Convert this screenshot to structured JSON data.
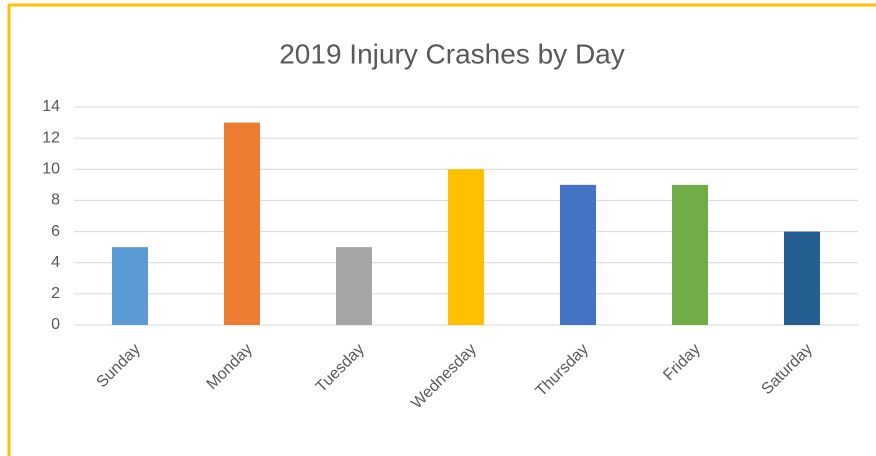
{
  "chart_data": {
    "type": "bar",
    "title": "2019 Injury Crashes by Day",
    "categories": [
      "Sunday",
      "Monday",
      "Tuesday",
      "Wednesday",
      "Thursday",
      "Friday",
      "Saturday"
    ],
    "values": [
      5,
      13,
      5,
      10,
      9,
      9,
      6
    ],
    "colors": [
      "#5B9BD5",
      "#ED7D31",
      "#A5A5A5",
      "#FFC000",
      "#4472C4",
      "#70AD47",
      "#255E91"
    ],
    "ylim": [
      0,
      14
    ],
    "yticks": [
      0,
      2,
      4,
      6,
      8,
      10,
      12,
      14
    ],
    "grid": true
  }
}
